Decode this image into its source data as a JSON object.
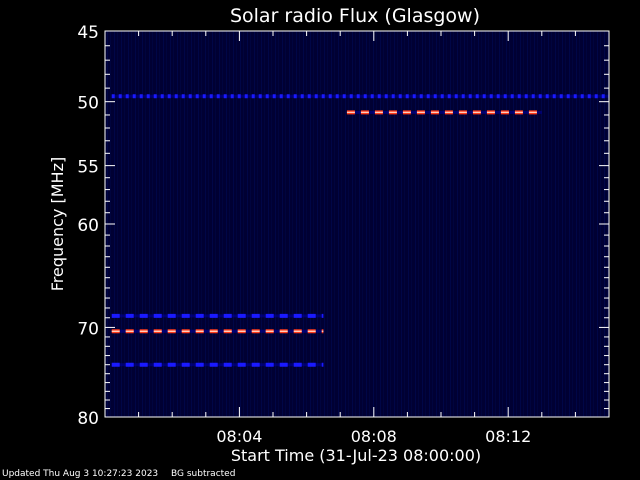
{
  "chart_data": {
    "type": "heatmap",
    "title": "Solar radio Flux (Glasgow)",
    "xlabel": "Start Time (31-Jul-23 08:00:00)",
    "ylabel": "Frequency [MHz]",
    "x_start": "08:00:00",
    "x_range_minutes": [
      0,
      15
    ],
    "x_ticks": [
      {
        "minute": 4,
        "label": "08:04"
      },
      {
        "minute": 8,
        "label": "08:08"
      },
      {
        "minute": 12,
        "label": "08:12"
      }
    ],
    "y_range_mhz": [
      45,
      80
    ],
    "y_ticks": [
      {
        "mhz": 45,
        "label": "45"
      },
      {
        "mhz": 50,
        "label": "50"
      },
      {
        "mhz": 55,
        "label": "55"
      },
      {
        "mhz": 60,
        "label": "60"
      },
      {
        "mhz": 70,
        "label": "70"
      },
      {
        "mhz": 80,
        "label": "80"
      }
    ],
    "y_scale": "log (inverted)",
    "background_color": "#000033",
    "features": [
      {
        "freq_mhz": 49.6,
        "t_start_min": 0.2,
        "t_end_min": 15.0,
        "intensity": "low",
        "color": "#1a1aff"
      },
      {
        "freq_mhz": 50.8,
        "t_start_min": 7.2,
        "t_end_min": 13.0,
        "intensity": "high",
        "color": "#ff3b1a"
      },
      {
        "freq_mhz": 68.8,
        "t_start_min": 0.2,
        "t_end_min": 6.5,
        "intensity": "low",
        "color": "#1a1aff"
      },
      {
        "freq_mhz": 70.4,
        "t_start_min": 0.2,
        "t_end_min": 6.5,
        "intensity": "high",
        "color": "#ff3b1a"
      },
      {
        "freq_mhz": 74.0,
        "t_start_min": 0.2,
        "t_end_min": 6.5,
        "intensity": "low",
        "color": "#1a1aff"
      }
    ]
  },
  "footer": {
    "updated": "Updated Thu Aug  3 10:27:23 2023",
    "mode": "BG subtracted"
  }
}
